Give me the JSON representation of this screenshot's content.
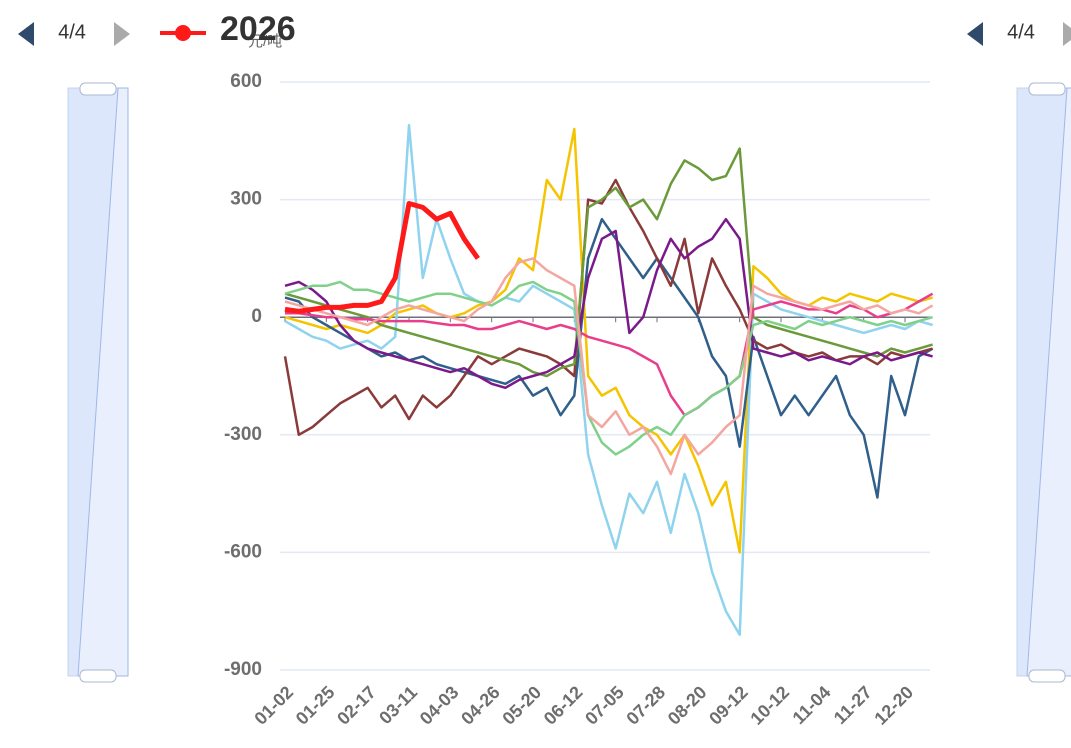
{
  "legend_page": "4/4",
  "chart_data": {
    "type": "line",
    "y_axis_label": "元/吨",
    "categories": [
      "01-02",
      null,
      null,
      "01-25",
      null,
      null,
      "02-17",
      null,
      null,
      "03-11",
      null,
      null,
      "04-03",
      null,
      null,
      "04-26",
      null,
      null,
      "05-20",
      null,
      null,
      "06-12",
      null,
      null,
      "07-05",
      null,
      null,
      "07-28",
      null,
      null,
      "08-20",
      null,
      null,
      "09-12",
      null,
      null,
      "10-12",
      null,
      null,
      "11-04",
      null,
      null,
      "11-27",
      null,
      null,
      "12-20",
      null,
      null
    ],
    "ylim": [
      -900,
      600
    ],
    "yticks": [
      -900,
      -600,
      -300,
      0,
      300,
      600
    ],
    "grid": true,
    "series": [
      {
        "color": "#f5c400",
        "values": [
          0,
          -10,
          -20,
          -30,
          -20,
          -30,
          -40,
          -20,
          10,
          20,
          30,
          10,
          0,
          10,
          30,
          40,
          70,
          150,
          120,
          350,
          300,
          480,
          -150,
          -200,
          -180,
          -250,
          -280,
          -300,
          -350,
          -300,
          -380,
          -480,
          -420,
          -600,
          130,
          100,
          60,
          40,
          30,
          50,
          40,
          60,
          50,
          40,
          60,
          50,
          40,
          50
        ]
      },
      {
        "color": "#8fd3ee",
        "values": [
          -10,
          -30,
          -50,
          -60,
          -80,
          -70,
          -60,
          -80,
          -50,
          490,
          100,
          250,
          150,
          60,
          40,
          30,
          50,
          40,
          80,
          60,
          40,
          20,
          -350,
          -480,
          -590,
          -450,
          -500,
          -420,
          -550,
          -400,
          -500,
          -650,
          -750,
          -810,
          60,
          40,
          20,
          10,
          0,
          -10,
          -20,
          -30,
          -40,
          -30,
          -20,
          -30,
          -10,
          -20
        ]
      },
      {
        "color": "#2f5f8a",
        "values": [
          50,
          40,
          0,
          -20,
          -40,
          -60,
          -80,
          -100,
          -90,
          -110,
          -100,
          -120,
          -130,
          -140,
          -150,
          -160,
          -170,
          -150,
          -200,
          -180,
          -250,
          -200,
          150,
          250,
          200,
          150,
          100,
          150,
          100,
          50,
          0,
          -100,
          -150,
          -330,
          -50,
          -150,
          -250,
          -200,
          -250,
          -200,
          -150,
          -250,
          -300,
          -460,
          -150,
          -250,
          -100,
          -80
        ]
      },
      {
        "color": "#8b3a3a",
        "values": [
          -100,
          -300,
          -280,
          -250,
          -220,
          -200,
          -180,
          -230,
          -200,
          -260,
          -200,
          -230,
          -200,
          -150,
          -100,
          -120,
          -100,
          -80,
          -90,
          -100,
          -120,
          -150,
          300,
          290,
          350,
          280,
          220,
          150,
          80,
          200,
          10,
          150,
          80,
          20,
          -60,
          -80,
          -70,
          -90,
          -100,
          -90,
          -110,
          -100,
          -100,
          -120,
          -90,
          -100,
          -90,
          -80
        ]
      },
      {
        "color": "#6b9a3a",
        "values": [
          60,
          50,
          40,
          30,
          20,
          10,
          0,
          -20,
          -30,
          -40,
          -50,
          -60,
          -70,
          -80,
          -90,
          -100,
          -110,
          -120,
          -140,
          -150,
          -130,
          -120,
          280,
          300,
          330,
          280,
          300,
          250,
          340,
          400,
          380,
          350,
          360,
          430,
          0,
          -20,
          -30,
          -40,
          -50,
          -60,
          -70,
          -80,
          -90,
          -100,
          -80,
          -90,
          -80,
          -70
        ]
      },
      {
        "color": "#e83e8c",
        "values": [
          10,
          10,
          5,
          0,
          0,
          -5,
          -5,
          -10,
          -10,
          -10,
          -10,
          -15,
          -20,
          -20,
          -30,
          -30,
          -20,
          -10,
          -20,
          -30,
          -20,
          -30,
          -50,
          -60,
          -70,
          -80,
          -100,
          -120,
          -200,
          -250,
          -230,
          -200,
          -180,
          -150,
          20,
          30,
          40,
          30,
          20,
          20,
          10,
          30,
          20,
          0,
          10,
          20,
          40,
          60
        ]
      },
      {
        "color": "#7a1a8a",
        "values": [
          80,
          90,
          70,
          40,
          -20,
          -60,
          -80,
          -90,
          -100,
          -110,
          -120,
          -130,
          -140,
          -130,
          -150,
          -170,
          -180,
          -160,
          -150,
          -140,
          -120,
          -100,
          100,
          200,
          220,
          -40,
          0,
          120,
          200,
          150,
          180,
          200,
          250,
          200,
          -80,
          -90,
          -100,
          -90,
          -110,
          -100,
          -110,
          -120,
          -100,
          -90,
          -110,
          -100,
          -90,
          -100
        ]
      },
      {
        "color": "#7fd18a",
        "values": [
          60,
          70,
          80,
          80,
          90,
          70,
          70,
          60,
          50,
          40,
          50,
          60,
          60,
          50,
          40,
          30,
          50,
          80,
          90,
          70,
          60,
          40,
          -250,
          -320,
          -350,
          -330,
          -300,
          -280,
          -300,
          -250,
          -230,
          -200,
          -180,
          -150,
          -20,
          -10,
          -20,
          -30,
          -10,
          -20,
          -10,
          0,
          -10,
          -20,
          -10,
          -20,
          -10,
          0
        ]
      },
      {
        "color": "#f4a6a0",
        "values": [
          40,
          30,
          20,
          10,
          0,
          -10,
          -20,
          0,
          20,
          30,
          20,
          10,
          0,
          -10,
          20,
          40,
          100,
          140,
          150,
          120,
          100,
          80,
          -250,
          -280,
          -240,
          -300,
          -280,
          -330,
          -400,
          -300,
          -350,
          -320,
          -280,
          -250,
          80,
          60,
          50,
          40,
          30,
          20,
          30,
          40,
          20,
          30,
          10,
          20,
          10,
          30
        ]
      },
      {
        "name": "2026",
        "color": "#ff1a1a",
        "values": [
          20,
          15,
          20,
          25,
          25,
          30,
          30,
          40,
          100,
          290,
          280,
          250,
          265,
          200,
          150,
          null,
          null,
          null,
          null,
          null,
          null,
          null,
          null,
          null,
          null,
          null,
          null,
          null,
          null,
          null,
          null,
          null,
          null,
          null,
          null,
          null,
          null,
          null,
          null,
          null,
          null,
          null,
          null,
          null,
          null,
          null,
          null,
          null
        ]
      }
    ]
  }
}
